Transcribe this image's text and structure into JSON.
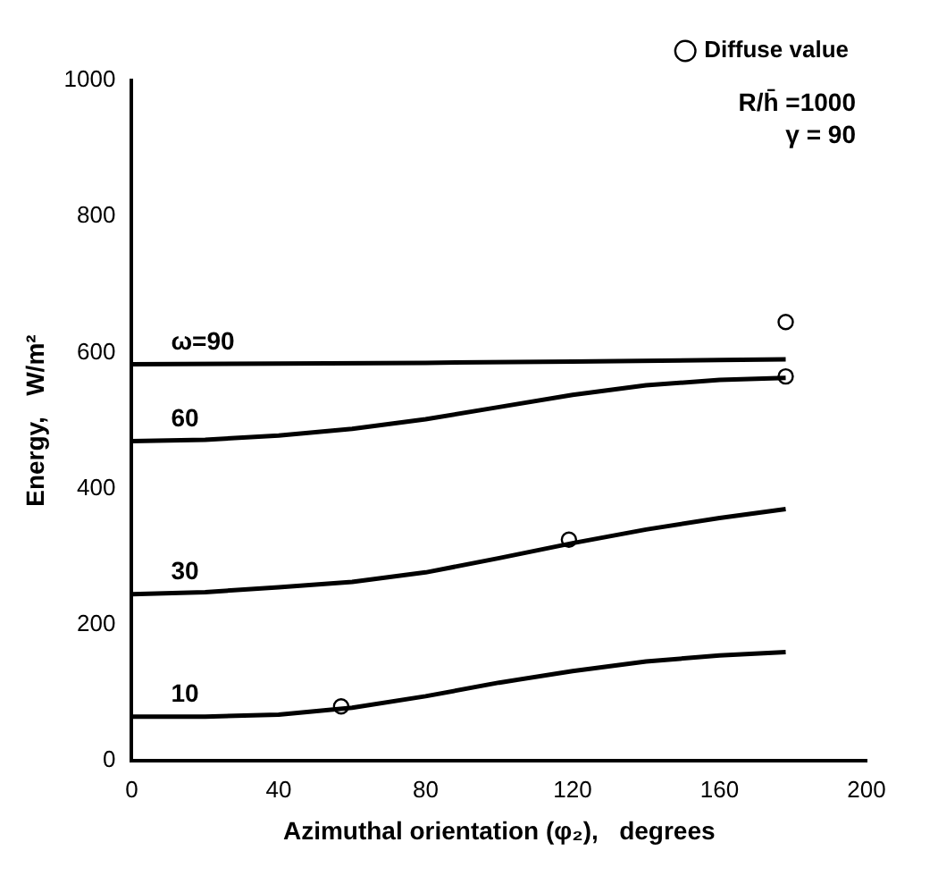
{
  "chart_data": {
    "type": "line",
    "xlabel": "Azimuthal orientation (φ₂),   degrees",
    "ylabel": "Energy,   W/m²",
    "xlim": [
      0,
      200
    ],
    "xticks": [
      0,
      40,
      80,
      120,
      160,
      200
    ],
    "ylim": [
      0,
      1000
    ],
    "yticks": [
      0,
      200,
      400,
      600,
      800,
      1000
    ],
    "grid": false,
    "legend": "top right",
    "annotations": [
      "R/h̄ =1000",
      "γ = 90"
    ],
    "series": [
      {
        "name": "ω=90",
        "type": "line",
        "marker": "none",
        "color": "#000000",
        "x": [
          0,
          40,
          80,
          120,
          160,
          178
        ],
        "values": [
          583,
          584,
          585,
          587,
          589,
          590
        ]
      },
      {
        "name": "60",
        "type": "line",
        "marker": "none",
        "color": "#000000",
        "x": [
          0,
          20,
          40,
          60,
          80,
          100,
          120,
          140,
          160,
          178
        ],
        "values": [
          470,
          472,
          478,
          488,
          502,
          520,
          538,
          552,
          560,
          563
        ]
      },
      {
        "name": "30",
        "type": "line",
        "marker": "none",
        "color": "#000000",
        "x": [
          0,
          20,
          40,
          60,
          80,
          100,
          120,
          140,
          160,
          178
        ],
        "values": [
          245,
          248,
          255,
          263,
          277,
          298,
          320,
          340,
          357,
          370
        ]
      },
      {
        "name": "10",
        "type": "line",
        "marker": "none",
        "color": "#000000",
        "x": [
          0,
          20,
          40,
          60,
          80,
          100,
          120,
          140,
          160,
          178
        ],
        "values": [
          65,
          65,
          68,
          78,
          95,
          115,
          132,
          146,
          155,
          160
        ]
      },
      {
        "name": "Diffuse value",
        "type": "scatter",
        "marker": "circle",
        "color": "#000000",
        "x": [
          57,
          119,
          178,
          178
        ],
        "values": [
          80,
          325,
          565,
          645
        ]
      }
    ]
  }
}
